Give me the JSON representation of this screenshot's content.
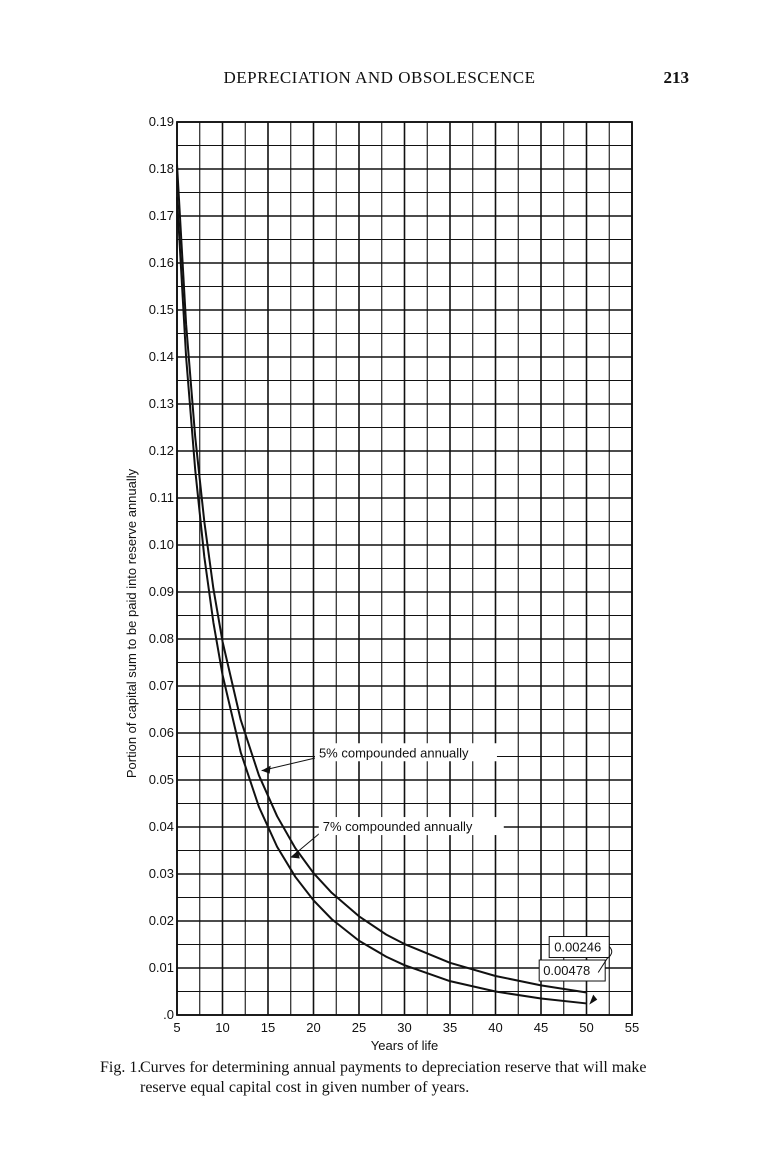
{
  "page": {
    "header": "DEPRECIATION AND OBSOLESCENCE",
    "page_number": "213"
  },
  "caption": {
    "label": "Fig. 1.",
    "text": "Curves for determining annual payments to depreciation reserve that will make reserve equal capital cost in given number of years."
  },
  "chart_data": {
    "type": "line",
    "title": "",
    "xlabel": "Years of life",
    "ylabel": "Portion of capital sum to be paid into reserve annually",
    "xlim": [
      5,
      55
    ],
    "ylim": [
      0,
      0.19
    ],
    "x_ticks": [
      5,
      10,
      15,
      20,
      25,
      30,
      35,
      40,
      45,
      50,
      55
    ],
    "x_tick_labels": [
      "5",
      "10",
      "15",
      "20",
      "25",
      "30",
      "35",
      "40",
      "45",
      "50",
      "55"
    ],
    "y_ticks": [
      0,
      0.01,
      0.02,
      0.03,
      0.04,
      0.05,
      0.06,
      0.07,
      0.08,
      0.09,
      0.1,
      0.11,
      0.12,
      0.13,
      0.14,
      0.15,
      0.16,
      0.17,
      0.18,
      0.19
    ],
    "y_tick_labels": [
      ".0",
      "0.01",
      "0.02",
      "0.03",
      "0.04",
      "0.05",
      "0.06",
      "0.07",
      "0.08",
      "0.09",
      "0.10",
      "0.11",
      "0.12",
      "0.13",
      "0.14",
      "0.15",
      "0.16",
      "0.17",
      "0.18",
      "0.19"
    ],
    "grid": true,
    "series": [
      {
        "name": "5% compounded annually",
        "x": [
          5,
          6,
          7,
          8,
          9,
          10,
          12,
          14,
          16,
          18,
          20,
          22,
          25,
          28,
          30,
          35,
          40,
          45,
          50
        ],
        "y": [
          0.181,
          0.147,
          0.123,
          0.105,
          0.0907,
          0.0795,
          0.0628,
          0.051,
          0.0423,
          0.0355,
          0.0302,
          0.026,
          0.021,
          0.0171,
          0.0151,
          0.0111,
          0.0083,
          0.0063,
          0.00478
        ]
      },
      {
        "name": "7% compounded annually",
        "x": [
          5,
          6,
          7,
          8,
          9,
          10,
          12,
          14,
          16,
          18,
          20,
          22,
          25,
          28,
          30,
          35,
          40,
          45,
          50
        ],
        "y": [
          0.174,
          0.14,
          0.116,
          0.0975,
          0.0835,
          0.0724,
          0.0559,
          0.0443,
          0.0358,
          0.0294,
          0.0244,
          0.0204,
          0.0158,
          0.0124,
          0.0106,
          0.0072,
          0.005,
          0.0035,
          0.00246
        ]
      }
    ],
    "annotations": [
      {
        "text": "5% compounded annually",
        "series": "5% compounded annually"
      },
      {
        "text": "7% compounded annually",
        "series": "7% compounded annually"
      },
      {
        "text": "0.00246",
        "x": 50,
        "y": 0.00246
      },
      {
        "text": "0.00478",
        "x": 50,
        "y": 0.00478
      }
    ]
  }
}
